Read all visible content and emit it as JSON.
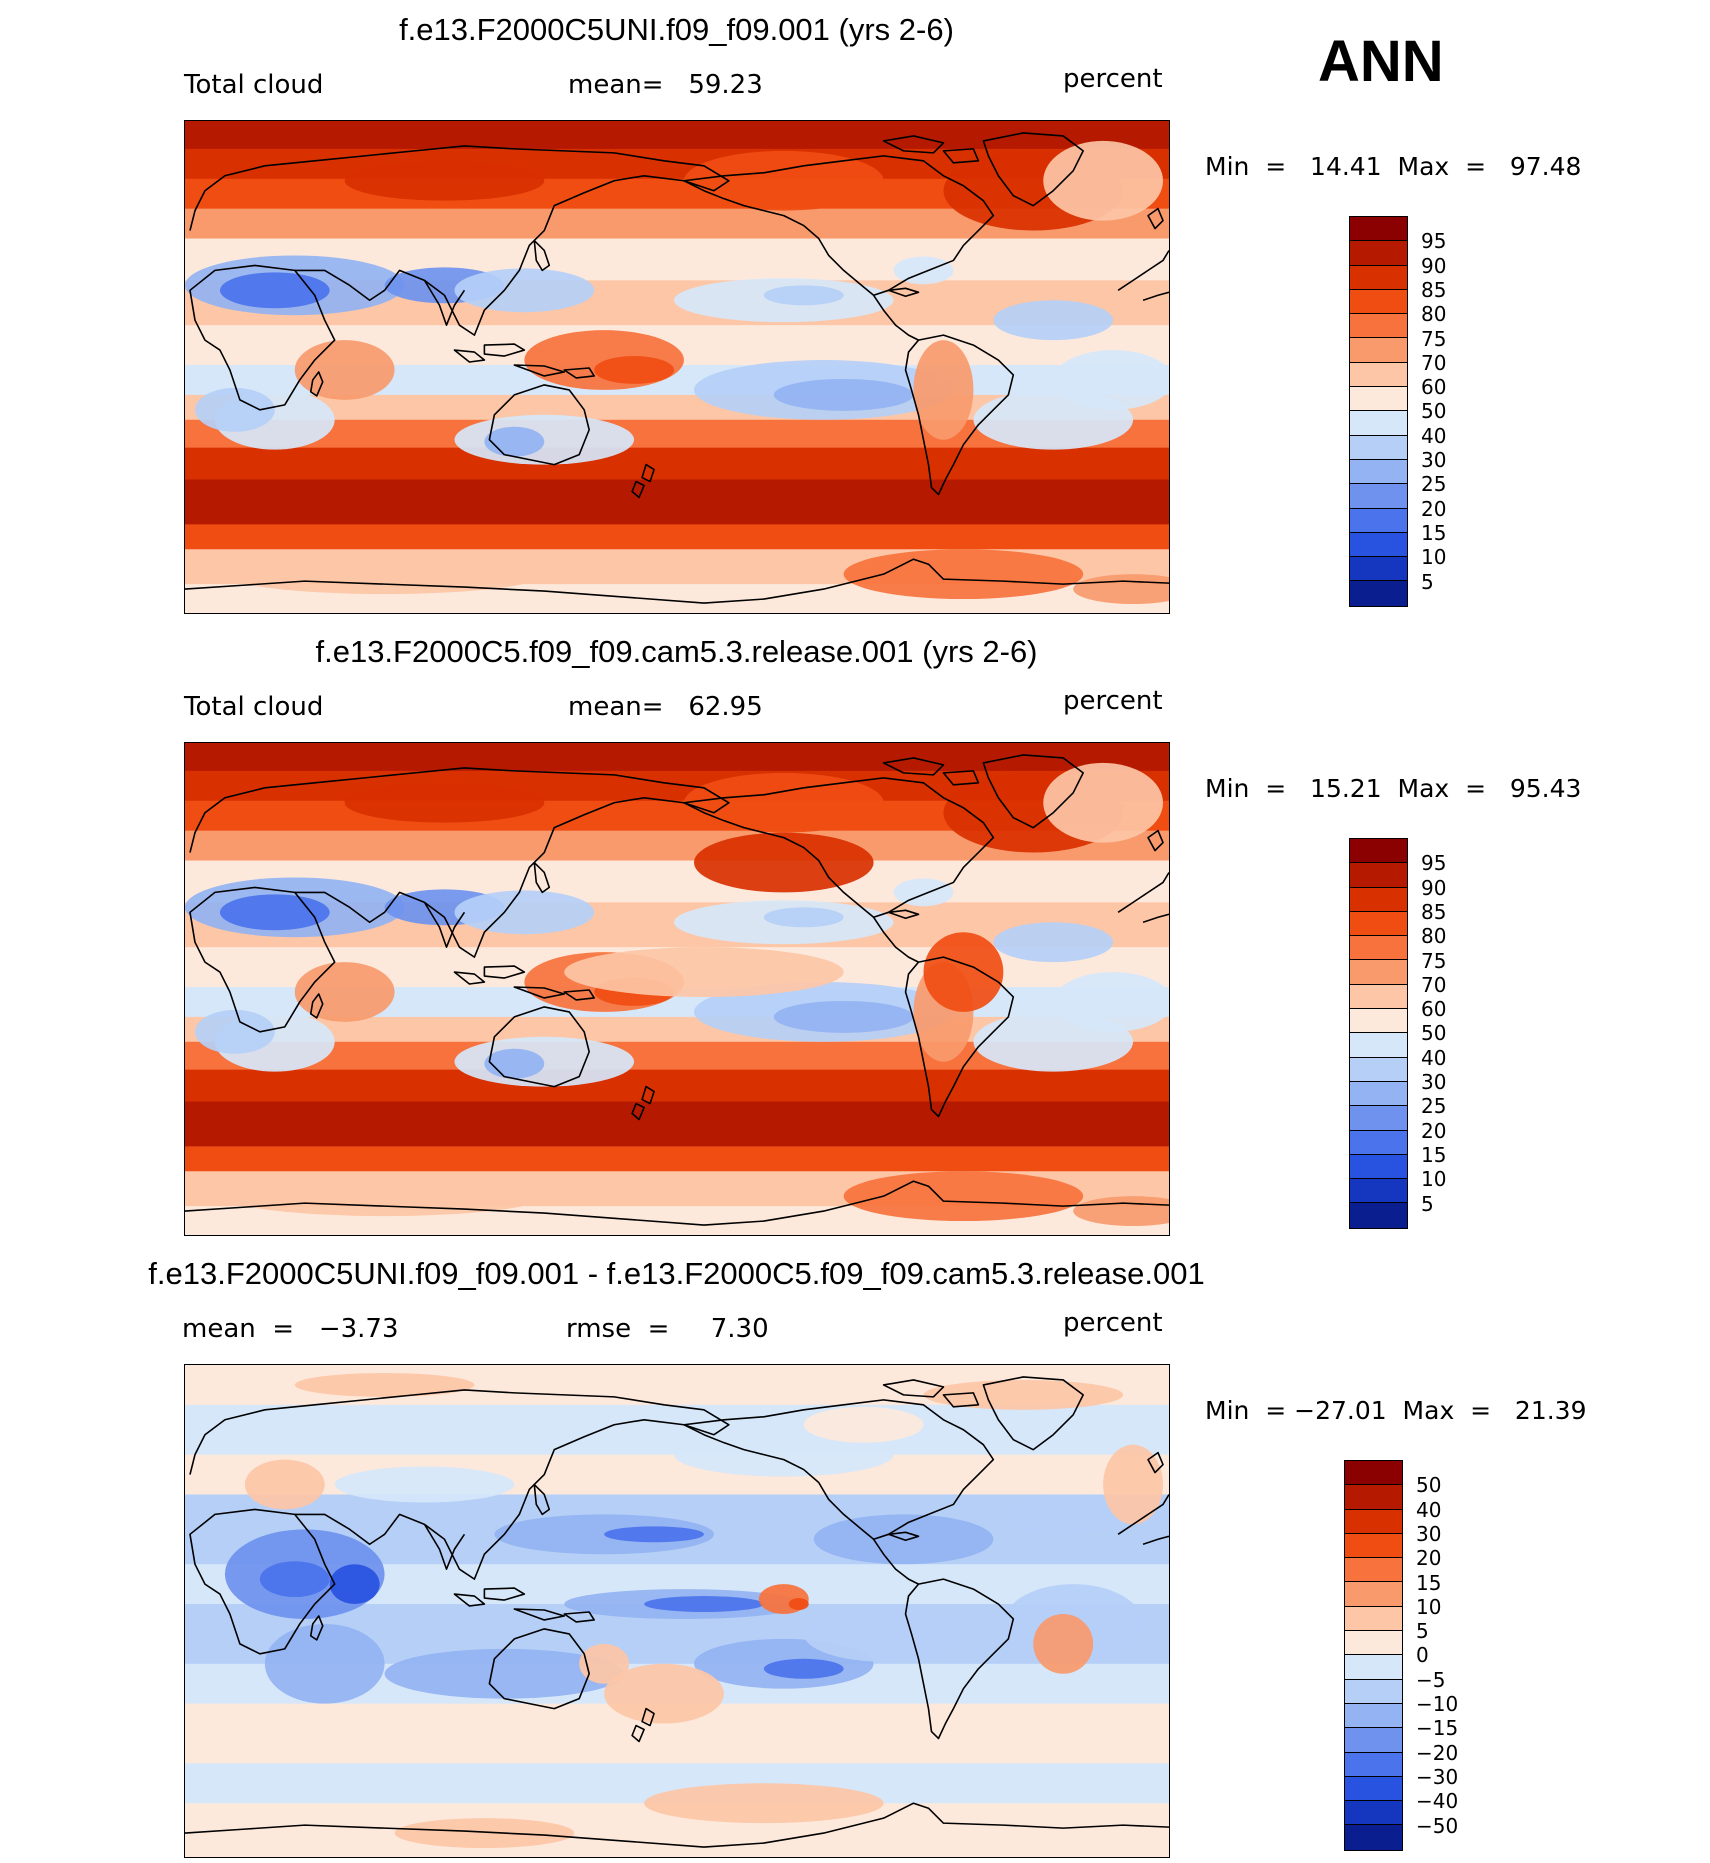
{
  "season": "ANN",
  "panels": [
    {
      "title": "f.e13.F2000C5UNI.f09_f09.001 (yrs 2-6)",
      "left_label": "Total cloud",
      "center_label": "mean=   59.23",
      "right_label": "percent",
      "minmax": "Min  =   14.41  Max  =   97.48"
    },
    {
      "title": "f.e13.F2000C5.f09_f09.cam5.3.release.001 (yrs 2-6)",
      "left_label": "Total cloud",
      "center_label": "mean=   62.95",
      "right_label": "percent",
      "minmax": "Min  =   15.21  Max  =   95.43"
    },
    {
      "title": "f.e13.F2000C5UNI.f09_f09.001 - f.e13.F2000C5.f09_f09.cam5.3.release.001",
      "left_label": "mean  =   −3.73",
      "center_label": "rmse  =     7.30",
      "right_label": "percent",
      "minmax": "Min  = −27.01  Max  =   21.39"
    }
  ],
  "chart_data": [
    {
      "type": "heatmap",
      "title": "f.e13.F2000C5UNI.f09_f09.001 (yrs 2-6)",
      "variable": "Total cloud",
      "units": "percent",
      "mean": 59.23,
      "min": 14.41,
      "max": 97.48,
      "colorbar_levels": [
        "95",
        "90",
        "85",
        "80",
        "75",
        "70",
        "60",
        "50",
        "40",
        "30",
        "25",
        "20",
        "15",
        "10",
        "5"
      ],
      "colorbar_colors": [
        "#8b0000",
        "#b51a00",
        "#d93000",
        "#f04d12",
        "#f7723c",
        "#f99a6d",
        "#fdc6a6",
        "#fde9dc",
        "#d6e7fa",
        "#b5cff7",
        "#93b3f2",
        "#6e92ee",
        "#4b73ec",
        "#2852e0",
        "#1537c0",
        "#0a1e90"
      ]
    },
    {
      "type": "heatmap",
      "title": "f.e13.F2000C5.f09_f09.cam5.3.release.001 (yrs 2-6)",
      "variable": "Total cloud",
      "units": "percent",
      "mean": 62.95,
      "min": 15.21,
      "max": 95.43,
      "colorbar_levels": [
        "95",
        "90",
        "85",
        "80",
        "75",
        "70",
        "60",
        "50",
        "40",
        "30",
        "25",
        "20",
        "15",
        "10",
        "5"
      ],
      "colorbar_colors": [
        "#8b0000",
        "#b51a00",
        "#d93000",
        "#f04d12",
        "#f7723c",
        "#f99a6d",
        "#fdc6a6",
        "#fde9dc",
        "#d6e7fa",
        "#b5cff7",
        "#93b3f2",
        "#6e92ee",
        "#4b73ec",
        "#2852e0",
        "#1537c0",
        "#0a1e90"
      ]
    },
    {
      "type": "heatmap",
      "title": "f.e13.F2000C5UNI.f09_f09.001 - f.e13.F2000C5.f09_f09.cam5.3.release.001",
      "units": "percent",
      "mean": -3.73,
      "rmse": 7.3,
      "min": -27.01,
      "max": 21.39,
      "colorbar_levels": [
        "50",
        "40",
        "30",
        "20",
        "15",
        "10",
        "5",
        "0",
        "−5",
        "−10",
        "−15",
        "−20",
        "−30",
        "−40",
        "−50"
      ],
      "colorbar_colors": [
        "#8b0000",
        "#b51a00",
        "#d93000",
        "#f04d12",
        "#f7723c",
        "#f99a6d",
        "#fdc6a6",
        "#fde9dc",
        "#d6e7fa",
        "#b5cff7",
        "#93b3f2",
        "#6e92ee",
        "#4b73ec",
        "#2852e0",
        "#1537c0",
        "#0a1e90"
      ]
    }
  ]
}
